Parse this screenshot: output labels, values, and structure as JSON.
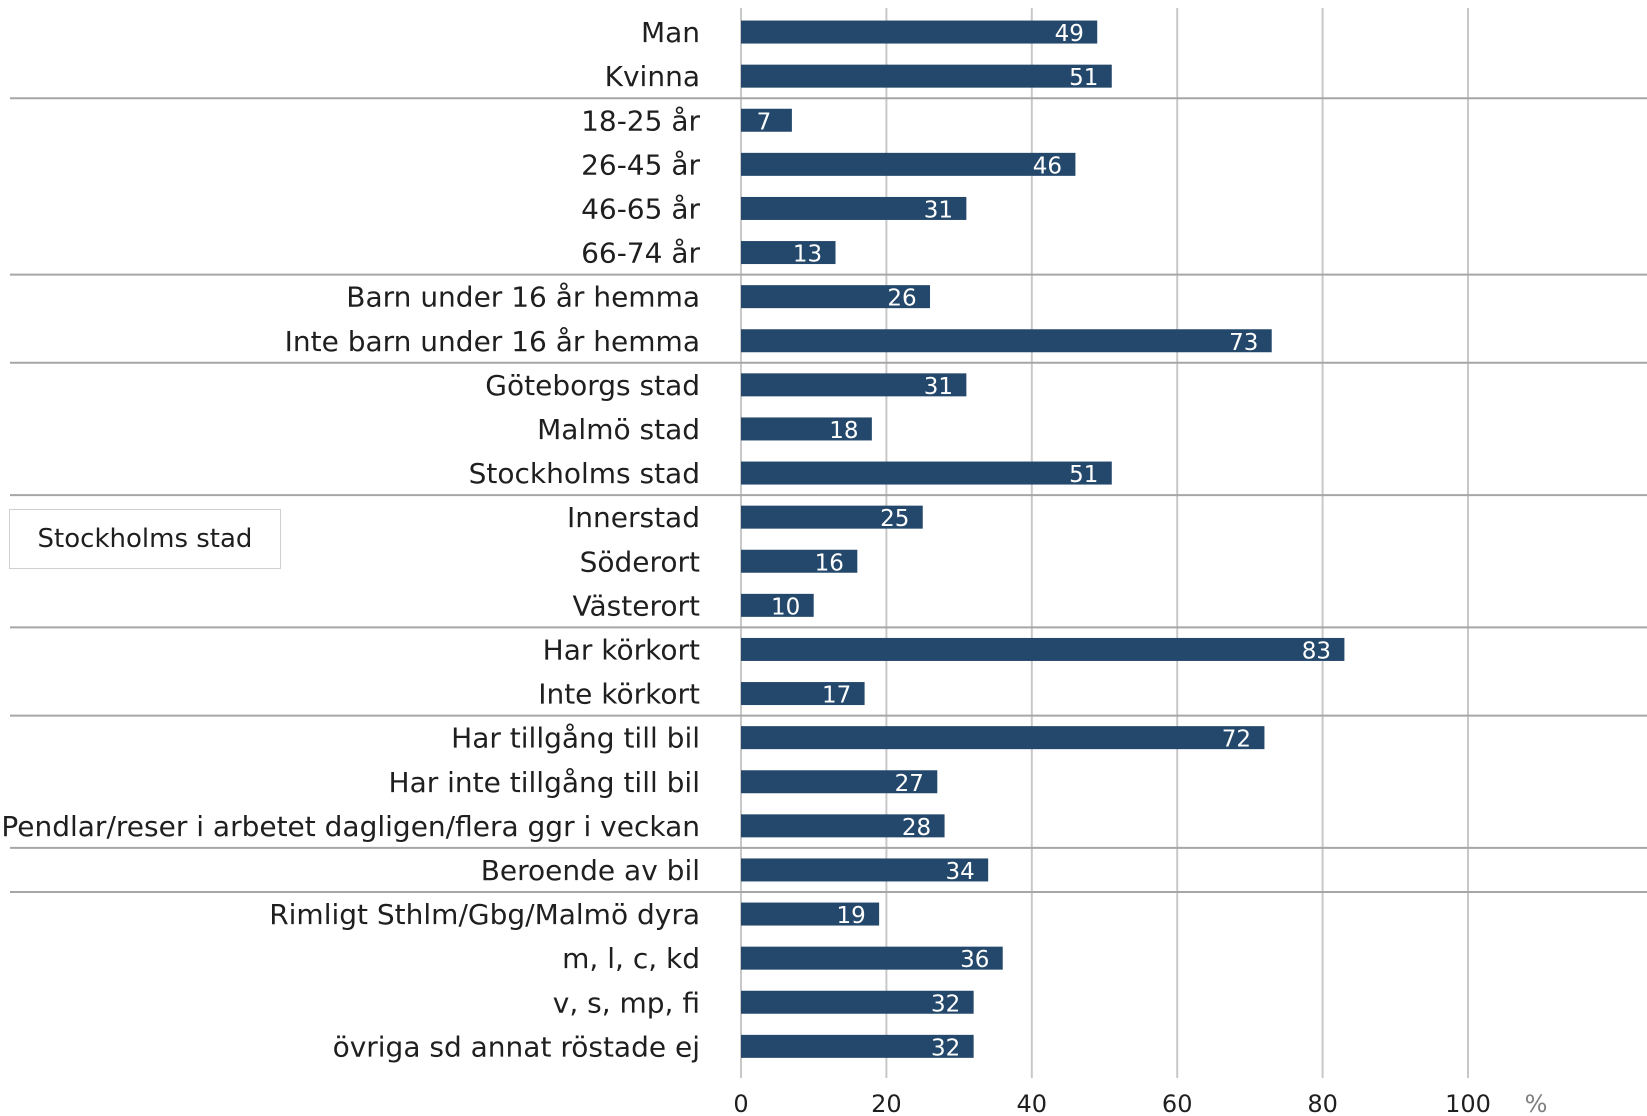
{
  "chart_data": {
    "type": "bar",
    "orientation": "horizontal",
    "categories": [
      "Man",
      "Kvinna",
      "18-25 år",
      "26-45 år",
      "46-65 år",
      "66-74 år",
      "Barn under 16 år hemma",
      "Inte barn under 16 år hemma",
      "Göteborgs stad",
      "Malmö stad",
      "Stockholms stad",
      "Innerstad",
      "Söderort",
      "Västerort",
      "Har körkort",
      "Inte körkort",
      "Har tillgång till bil",
      "Har inte tillgång till bil",
      "Pendlar/reser i arbetet dagligen/flera ggr i veckan",
      "Beroende av bil",
      "Rimligt Sthlm/Gbg/Malmö dyra",
      "m, l, c, kd",
      "v, s, mp, fi",
      "övriga sd annat röstade ej"
    ],
    "values": [
      49,
      51,
      7,
      46,
      31,
      13,
      26,
      73,
      31,
      18,
      51,
      25,
      16,
      10,
      83,
      17,
      72,
      27,
      28,
      34,
      19,
      36,
      32,
      32
    ],
    "group_separators_after_index": [
      1,
      5,
      7,
      10,
      13,
      15,
      18,
      19
    ],
    "xlim": [
      0,
      120
    ],
    "xticks": [
      0,
      20,
      40,
      60,
      80,
      100
    ],
    "xunit": "%",
    "grid": true,
    "bar_color": "#23486b",
    "annotation": "Stockholms stad"
  }
}
